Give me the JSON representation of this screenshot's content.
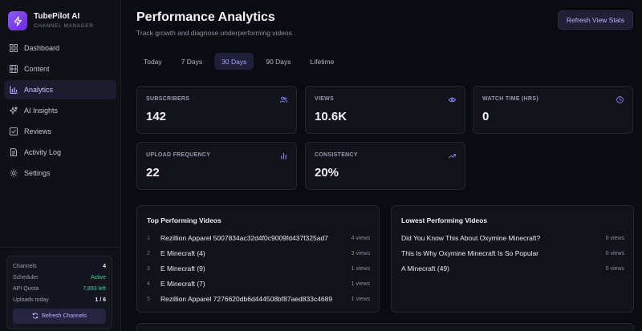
{
  "brand": {
    "title": "TubePilot AI",
    "subtitle": "CHANNEL MANAGER"
  },
  "nav": [
    {
      "label": "Dashboard",
      "icon": "dashboard-icon"
    },
    {
      "label": "Content",
      "icon": "film-icon"
    },
    {
      "label": "Analytics",
      "icon": "bar-chart-icon",
      "active": true
    },
    {
      "label": "AI Insights",
      "icon": "sparkle-icon"
    },
    {
      "label": "Reviews",
      "icon": "checklist-icon"
    },
    {
      "label": "Activity Log",
      "icon": "log-icon"
    },
    {
      "label": "Settings",
      "icon": "gear-icon"
    }
  ],
  "status": {
    "rows": [
      {
        "label": "Channels",
        "value": "4"
      },
      {
        "label": "Scheduler",
        "value": "Active"
      },
      {
        "label": "API Quota",
        "value": "7,893 left"
      },
      {
        "label": "Uploads today",
        "value": "1 / 6"
      }
    ],
    "refresh_label": "Refresh Channels"
  },
  "header": {
    "title": "Performance Analytics",
    "subtitle": "Track growth and diagnose underperforming videos",
    "refresh_label": "Refresh View Stats"
  },
  "tabs": [
    {
      "label": "Today"
    },
    {
      "label": "7 Days"
    },
    {
      "label": "30 Days",
      "active": true
    },
    {
      "label": "90 Days"
    },
    {
      "label": "Lifetime"
    }
  ],
  "stats": [
    {
      "label": "SUBSCRIBERS",
      "value": "142",
      "icon": "users-icon"
    },
    {
      "label": "VIEWS",
      "value": "10.6K",
      "icon": "eye-icon"
    },
    {
      "label": "WATCH TIME (HRS)",
      "value": "0",
      "icon": "clock-icon"
    },
    {
      "label": "UPLOAD FREQUENCY",
      "value": "22",
      "icon": "bar-chart-icon"
    },
    {
      "label": "CONSISTENCY",
      "value": "20%",
      "icon": "trend-up-icon"
    }
  ],
  "top_videos": {
    "title": "Top Performing Videos",
    "items": [
      {
        "rank": "1",
        "title": "Rezillion Apparel 5007834ac32d4f0c9009fd437f325ad7",
        "views": "4 views"
      },
      {
        "rank": "2",
        "title": "E Minecraft (4)",
        "views": "3 views"
      },
      {
        "rank": "3",
        "title": "E Minecraft (9)",
        "views": "1 views"
      },
      {
        "rank": "4",
        "title": "E Minecraft (7)",
        "views": "1 views"
      },
      {
        "rank": "5",
        "title": "Rezillion Apparel 7276620db6d444508bf87aed833c4689",
        "views": "1 views"
      }
    ]
  },
  "low_videos": {
    "title": "Lowest Performing Videos",
    "items": [
      {
        "title": "Did You Know This About Oxymine Minecraft?",
        "views": "0 views"
      },
      {
        "title": "This Is Why Oxymine Minecraft Is So Popular",
        "views": "0 views"
      },
      {
        "title": "A Minecraft (49)",
        "views": "0 views"
      }
    ]
  },
  "colors": {
    "accent": "#8b5cf6",
    "active_text": "#a8a4ff",
    "success": "#34d399",
    "background": "#0b0b12"
  }
}
